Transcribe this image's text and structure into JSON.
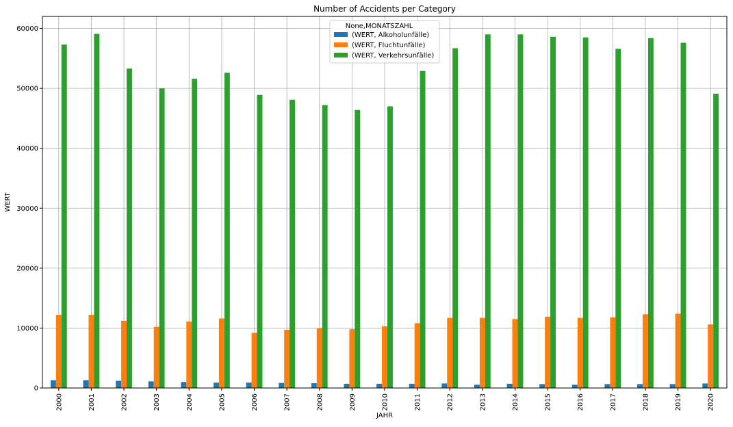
{
  "chart_data": {
    "type": "bar",
    "title": "Number of Accidents per Category",
    "xlabel": "JAHR",
    "ylabel": "WERT",
    "ylim": [
      0,
      62000
    ],
    "yticks": [
      0,
      10000,
      20000,
      30000,
      40000,
      50000,
      60000
    ],
    "grid": true,
    "legend_title": "None,MONATSZAHL",
    "legend_position": "top-center",
    "categories": [
      "2000",
      "2001",
      "2002",
      "2003",
      "2004",
      "2005",
      "2006",
      "2007",
      "2008",
      "2009",
      "2010",
      "2011",
      "2012",
      "2013",
      "2014",
      "2015",
      "2016",
      "2017",
      "2018",
      "2019",
      "2020"
    ],
    "series": [
      {
        "name": "(WERT, Alkoholunfälle)",
        "color": "#1f77b4",
        "values": [
          1300,
          1300,
          1200,
          1100,
          1000,
          900,
          900,
          850,
          800,
          700,
          700,
          700,
          750,
          550,
          700,
          650,
          550,
          650,
          650,
          650,
          750
        ]
      },
      {
        "name": "(WERT, Fluchtunfälle)",
        "color": "#ff7f0e",
        "values": [
          12200,
          12200,
          11200,
          10200,
          11100,
          11600,
          9200,
          9700,
          9950,
          9800,
          10300,
          10800,
          11700,
          11700,
          11500,
          11900,
          11700,
          11800,
          12300,
          12400,
          10600
        ]
      },
      {
        "name": "(WERT, Verkehrsunfälle)",
        "color": "#2ca02c",
        "values": [
          57300,
          59100,
          53300,
          50000,
          51600,
          52600,
          48900,
          48100,
          47200,
          46400,
          47000,
          52900,
          56700,
          59000,
          59000,
          58600,
          58500,
          56600,
          58400,
          57600,
          49100
        ]
      }
    ]
  }
}
